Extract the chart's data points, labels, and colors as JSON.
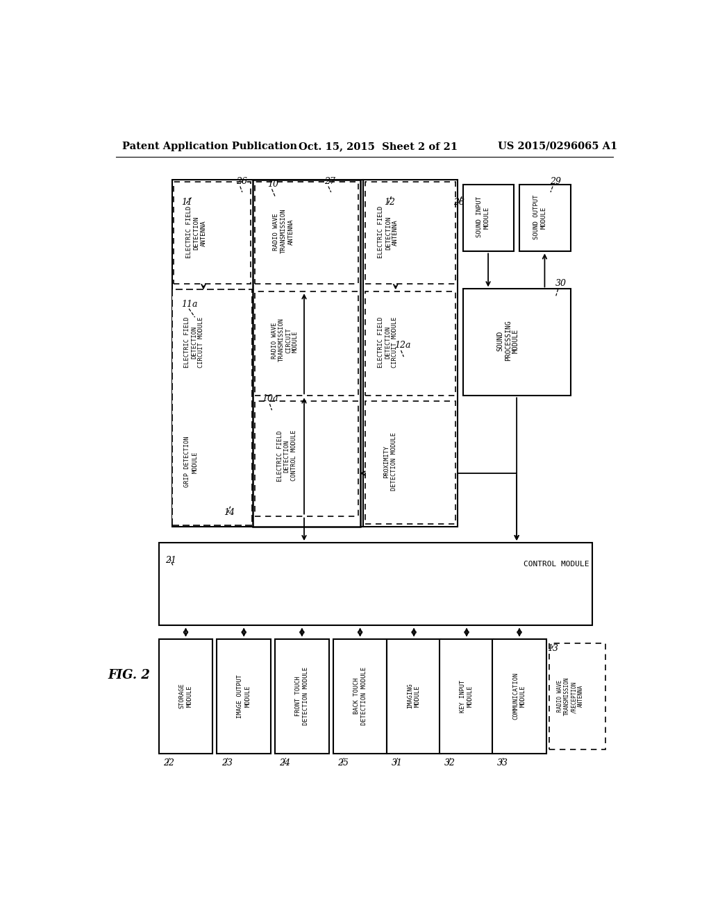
{
  "title_left": "Patent Application Publication",
  "title_mid": "Oct. 15, 2015  Sheet 2 of 21",
  "title_right": "US 2015/0296065 A1",
  "fig_label": "FIG. 2",
  "bg_color": "#ffffff",
  "lc": "#000000",
  "fc": "#000000"
}
